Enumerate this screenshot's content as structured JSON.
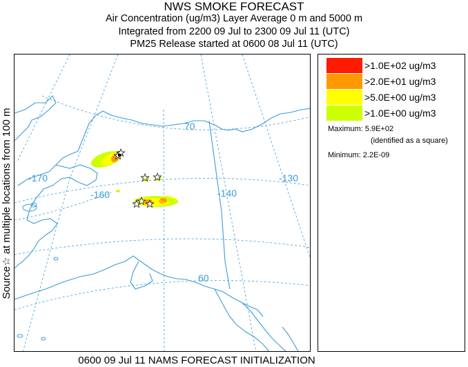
{
  "header": {
    "title": "NWS SMOKE FORECAST",
    "line2": "Air Concentration (ug/m3) Layer Average    0 m and  5000 m",
    "line3": "Integrated from 2200 09 Jul to 2300 09 Jul 11 (UTC)",
    "line4": "PM25 Release started at 0600 08 Jul 11 (UTC)"
  },
  "side_label": "Source☆ at multiple locations from   100 m",
  "footer": "0600 09 Jul 11 NAMS FORECAST INITIALIZATION",
  "map": {
    "grid_labels": {
      "lon_170": "-170",
      "lon_160": "-160",
      "lon_140": "-140",
      "lon_130": "-130",
      "lat_70": "70",
      "lat_60": "60"
    },
    "colors": {
      "coast": "#3a9bd9",
      "grid": "#3a9bd9",
      "level4": "#ff1a00",
      "level3": "#ff9900",
      "level2": "#ffff00",
      "level1": "#ccff00"
    }
  },
  "legend": {
    "items": [
      {
        "label": ">1.0E+02 ug/m3",
        "color": "#ff1a00"
      },
      {
        "label": ">2.0E+01 ug/m3",
        "color": "#ff9900"
      },
      {
        "label": ">5.0E+00 ug/m3",
        "color": "#ffff00"
      },
      {
        "label": ">1.0E+00 ug/m3",
        "color": "#ccff00"
      }
    ],
    "maximum": "Maximum: 5.9E+02",
    "maximum_note": "(identified as a square)",
    "minimum": "Minimum: 2.2E-09"
  }
}
